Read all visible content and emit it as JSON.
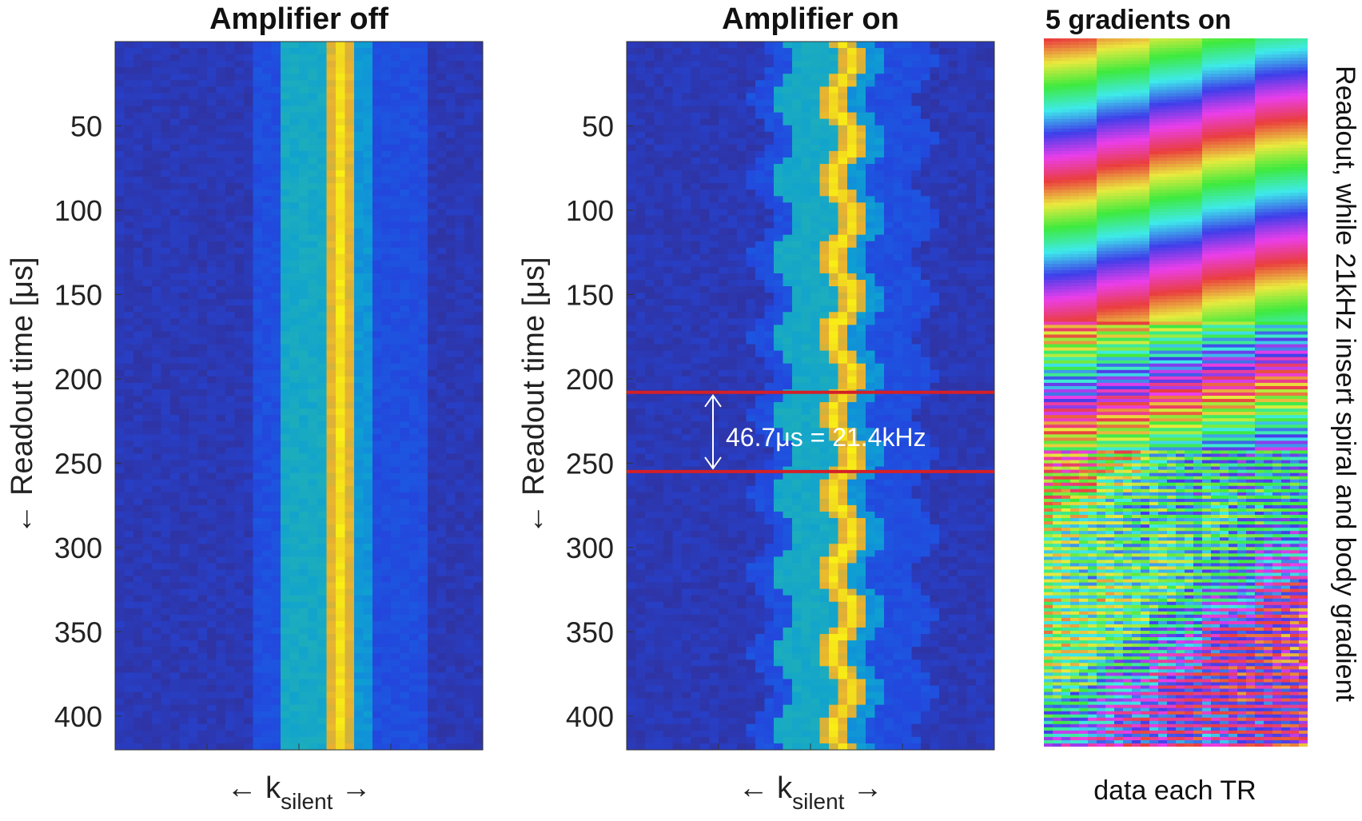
{
  "chart_data": [
    {
      "type": "heatmap",
      "title": "Amplifier off",
      "xlabel": "← k",
      "xlabel_subscript": "silent",
      "xlabel_suffix": "→",
      "ylabel": "← Readout time [μs]",
      "yticks": [
        50,
        100,
        150,
        200,
        250,
        300,
        350,
        400
      ],
      "ylim": [
        0,
        420
      ],
      "n_columns": 40,
      "peak_column": 24,
      "oscillation_amplitude_columns": 0,
      "colormap": "parula"
    },
    {
      "type": "heatmap",
      "title": "Amplifier on",
      "xlabel": "← k",
      "xlabel_subscript": "silent",
      "xlabel_suffix": "→",
      "ylabel": "← Readout time [μs]",
      "yticks": [
        50,
        100,
        150,
        200,
        250,
        300,
        350,
        400
      ],
      "ylim": [
        0,
        420
      ],
      "n_columns": 40,
      "peak_column": 23,
      "oscillation_period_us": 46.7,
      "oscillation_amplitude_columns": 1.2,
      "annotation": {
        "text": "46.7μs = 21.4kHz",
        "line1_time_us": 208,
        "line2_time_us": 255,
        "line_color": "#d42027"
      },
      "colormap": "parula"
    },
    {
      "type": "heatmap",
      "title": "5 gradients on",
      "xlabel": "data each TR",
      "side_label": "Readout, while 21kHz insert spiral and body gradient",
      "colormap": "hsv (phase)",
      "n_columns": 5
    }
  ]
}
